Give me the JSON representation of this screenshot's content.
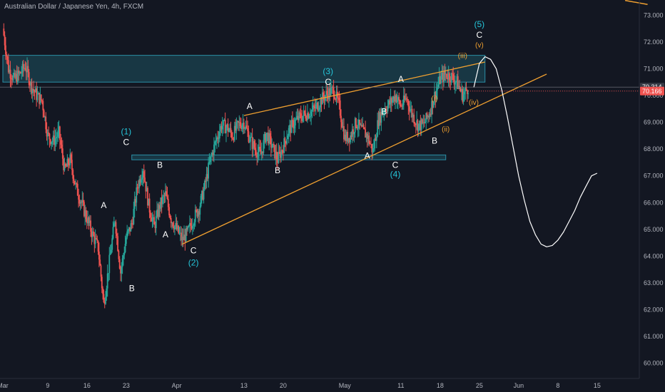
{
  "window": {
    "title": "Australian Dollar / Japanese Yen, 4h, FXCM"
  },
  "colors": {
    "background": "#131722",
    "up": "#26a69a",
    "down": "#ef5350",
    "trendline": "#f0a030",
    "zone": "#1e5f6e",
    "projection": "#ffffff"
  },
  "chart_data": {
    "type": "candlestick",
    "title": "Australian Dollar / Japanese Yen, 4h, FXCM",
    "y_ticks": [
      60.0,
      61.0,
      62.0,
      63.0,
      64.0,
      65.0,
      66.0,
      67.0,
      68.0,
      69.0,
      70.0,
      71.0,
      72.0,
      73.0
    ],
    "y_range": [
      59.7,
      73.3
    ],
    "x_ticks": [
      "Mar",
      "9",
      "16",
      "23",
      "Apr",
      "13",
      "20",
      "May",
      "11",
      "18",
      "25",
      "Jun",
      "8",
      "15"
    ],
    "x_range": [
      "2020-03-01",
      "2020-06-21"
    ],
    "price_labels": [
      {
        "value": 70.314,
        "text": "70.314",
        "color": "#363a45"
      },
      {
        "value": 70.166,
        "text": "70.166",
        "color": "#ef5350"
      }
    ],
    "price_path": [
      [
        "2020-03-01",
        72.5
      ],
      [
        "2020-03-02",
        71.0
      ],
      [
        "2020-03-03",
        70.6
      ],
      [
        "2020-03-04",
        70.8
      ],
      [
        "2020-03-05",
        71.1
      ],
      [
        "2020-03-06",
        70.4
      ],
      [
        "2020-03-07",
        70.0
      ],
      [
        "2020-03-08",
        69.8
      ],
      [
        "2020-03-09",
        68.5
      ],
      [
        "2020-03-10",
        68.3
      ],
      [
        "2020-03-11",
        68.6
      ],
      [
        "2020-03-12",
        67.2
      ],
      [
        "2020-03-13",
        67.6
      ],
      [
        "2020-03-14",
        66.6
      ],
      [
        "2020-03-15",
        66.0
      ],
      [
        "2020-03-16",
        65.4
      ],
      [
        "2020-03-17",
        64.8
      ],
      [
        "2020-03-18",
        64.3
      ],
      [
        "2020-03-19",
        62.2
      ],
      [
        "2020-03-20",
        63.8
      ],
      [
        "2020-03-21",
        65.4
      ],
      [
        "2020-03-22",
        63.4
      ],
      [
        "2020-03-23",
        64.7
      ],
      [
        "2020-03-24",
        65.2
      ],
      [
        "2020-03-25",
        66.6
      ],
      [
        "2020-03-26",
        67.3
      ],
      [
        "2020-03-27",
        65.9
      ],
      [
        "2020-03-28",
        65.1
      ],
      [
        "2020-03-29",
        65.9
      ],
      [
        "2020-03-30",
        66.3
      ],
      [
        "2020-03-31",
        65.4
      ],
      [
        "2020-04-01",
        65.0
      ],
      [
        "2020-04-02",
        64.6
      ],
      [
        "2020-04-03",
        64.9
      ],
      [
        "2020-04-04",
        65.4
      ],
      [
        "2020-04-05",
        65.8
      ],
      [
        "2020-04-06",
        66.6
      ],
      [
        "2020-04-07",
        67.6
      ],
      [
        "2020-04-08",
        68.3
      ],
      [
        "2020-04-09",
        68.9
      ],
      [
        "2020-04-10",
        68.8
      ],
      [
        "2020-04-11",
        68.5
      ],
      [
        "2020-04-12",
        68.9
      ],
      [
        "2020-04-13",
        69.0
      ],
      [
        "2020-04-14",
        68.4
      ],
      [
        "2020-04-15",
        68.0
      ],
      [
        "2020-04-16",
        67.8
      ],
      [
        "2020-04-17",
        68.6
      ],
      [
        "2020-04-18",
        68.1
      ],
      [
        "2020-04-19",
        67.6
      ],
      [
        "2020-04-20",
        68.1
      ],
      [
        "2020-04-21",
        68.7
      ],
      [
        "2020-04-22",
        69.0
      ],
      [
        "2020-04-23",
        69.2
      ],
      [
        "2020-04-24",
        69.3
      ],
      [
        "2020-04-25",
        69.4
      ],
      [
        "2020-04-26",
        69.6
      ],
      [
        "2020-04-27",
        69.9
      ],
      [
        "2020-04-28",
        70.1
      ],
      [
        "2020-04-29",
        70.2
      ],
      [
        "2020-04-30",
        69.6
      ],
      [
        "2020-05-01",
        68.4
      ],
      [
        "2020-05-02",
        68.5
      ],
      [
        "2020-05-03",
        69.0
      ],
      [
        "2020-05-04",
        68.7
      ],
      [
        "2020-05-05",
        68.5
      ],
      [
        "2020-05-06",
        67.9
      ],
      [
        "2020-05-07",
        69.1
      ],
      [
        "2020-05-08",
        69.5
      ],
      [
        "2020-05-09",
        69.7
      ],
      [
        "2020-05-10",
        70.0
      ],
      [
        "2020-05-11",
        69.6
      ],
      [
        "2020-05-12",
        69.9
      ],
      [
        "2020-05-13",
        69.3
      ],
      [
        "2020-05-14",
        68.9
      ],
      [
        "2020-05-15",
        68.9
      ],
      [
        "2020-05-16",
        69.3
      ],
      [
        "2020-05-17",
        70.0
      ],
      [
        "2020-05-18",
        70.6
      ],
      [
        "2020-05-19",
        70.8
      ],
      [
        "2020-05-20",
        70.7
      ],
      [
        "2020-05-21",
        70.5
      ],
      [
        "2020-05-22",
        70.0
      ],
      [
        "2020-05-23",
        70.314
      ]
    ],
    "zones": [
      {
        "x0": "2020-03-01",
        "x1": "2020-05-26",
        "y0": 70.5,
        "y1": 71.5
      },
      {
        "x0": "2020-03-24",
        "x1": "2020-05-19",
        "y0": 67.6,
        "y1": 67.78
      }
    ],
    "trendlines": [
      {
        "x0": "2020-04-02",
        "y0": 64.45,
        "x1": "2020-06-06",
        "y1": 70.8
      },
      {
        "x0": "2020-04-13",
        "y0": 69.25,
        "x1": "2020-05-26",
        "y1": 71.25
      }
    ],
    "projection": [
      [
        "2020-05-24",
        70.3
      ],
      [
        "2020-05-25",
        71.2
      ],
      [
        "2020-05-26",
        71.45
      ],
      [
        "2020-05-27",
        71.35
      ],
      [
        "2020-05-28",
        71.0
      ],
      [
        "2020-05-29",
        70.2
      ],
      [
        "2020-05-30",
        69.2
      ],
      [
        "2020-05-31",
        68.1
      ],
      [
        "2020-06-01",
        67.0
      ],
      [
        "2020-06-02",
        66.1
      ],
      [
        "2020-06-03",
        65.3
      ],
      [
        "2020-06-04",
        64.8
      ],
      [
        "2020-06-05",
        64.45
      ],
      [
        "2020-06-06",
        64.35
      ],
      [
        "2020-06-07",
        64.4
      ],
      [
        "2020-06-08",
        64.6
      ],
      [
        "2020-06-09",
        64.9
      ],
      [
        "2020-06-10",
        65.3
      ],
      [
        "2020-06-11",
        65.7
      ],
      [
        "2020-06-12",
        66.2
      ],
      [
        "2020-06-13",
        66.6
      ],
      [
        "2020-06-14",
        67.0
      ],
      [
        "2020-06-15",
        67.1
      ]
    ],
    "corner_line": {
      "x0": "2020-06-20",
      "y0": 73.55,
      "x1": "2020-06-24",
      "y1": 73.4
    },
    "annotations": [
      {
        "text": "(1)",
        "x": "2020-03-23",
        "y": 68.55,
        "color": "cyan"
      },
      {
        "text": "C",
        "x": "2020-03-23",
        "y": 68.15,
        "color": "white"
      },
      {
        "text": "B",
        "x": "2020-03-24",
        "y": 62.7,
        "color": "white"
      },
      {
        "text": "A",
        "x": "2020-03-19",
        "y": 65.8,
        "color": "white"
      },
      {
        "text": "A",
        "x": "2020-03-30",
        "y": 64.7,
        "color": "white"
      },
      {
        "text": "B",
        "x": "2020-03-29",
        "y": 67.3,
        "color": "white"
      },
      {
        "text": "C",
        "x": "2020-04-04",
        "y": 64.1,
        "color": "white"
      },
      {
        "text": "(2)",
        "x": "2020-04-04",
        "y": 63.65,
        "color": "cyan"
      },
      {
        "text": "A",
        "x": "2020-04-14",
        "y": 69.5,
        "color": "white"
      },
      {
        "text": "B",
        "x": "2020-04-19",
        "y": 67.1,
        "color": "white"
      },
      {
        "text": "(3)",
        "x": "2020-04-28",
        "y": 70.8,
        "color": "cyan"
      },
      {
        "text": "C",
        "x": "2020-04-28",
        "y": 70.4,
        "color": "white"
      },
      {
        "text": "A",
        "x": "2020-05-05",
        "y": 67.65,
        "color": "white"
      },
      {
        "text": "B",
        "x": "2020-05-08",
        "y": 69.3,
        "color": "white"
      },
      {
        "text": "C",
        "x": "2020-05-10",
        "y": 67.3,
        "color": "white"
      },
      {
        "text": "(4)",
        "x": "2020-05-10",
        "y": 66.95,
        "color": "cyan"
      },
      {
        "text": "A",
        "x": "2020-05-11",
        "y": 70.5,
        "color": "white"
      },
      {
        "text": "(i)",
        "x": "2020-05-17",
        "y": 69.8,
        "color": "orange"
      },
      {
        "text": "(ii)",
        "x": "2020-05-19",
        "y": 68.65,
        "color": "orange"
      },
      {
        "text": "B",
        "x": "2020-05-17",
        "y": 68.2,
        "color": "white"
      },
      {
        "text": "(iii)",
        "x": "2020-05-22",
        "y": 71.4,
        "color": "orange"
      },
      {
        "text": "(iv)",
        "x": "2020-05-24",
        "y": 69.65,
        "color": "orange"
      },
      {
        "text": "(5)",
        "x": "2020-05-25",
        "y": 72.55,
        "color": "cyan"
      },
      {
        "text": "C",
        "x": "2020-05-25",
        "y": 72.15,
        "color": "white"
      },
      {
        "text": "(v)",
        "x": "2020-05-25",
        "y": 71.8,
        "color": "orange"
      }
    ]
  }
}
